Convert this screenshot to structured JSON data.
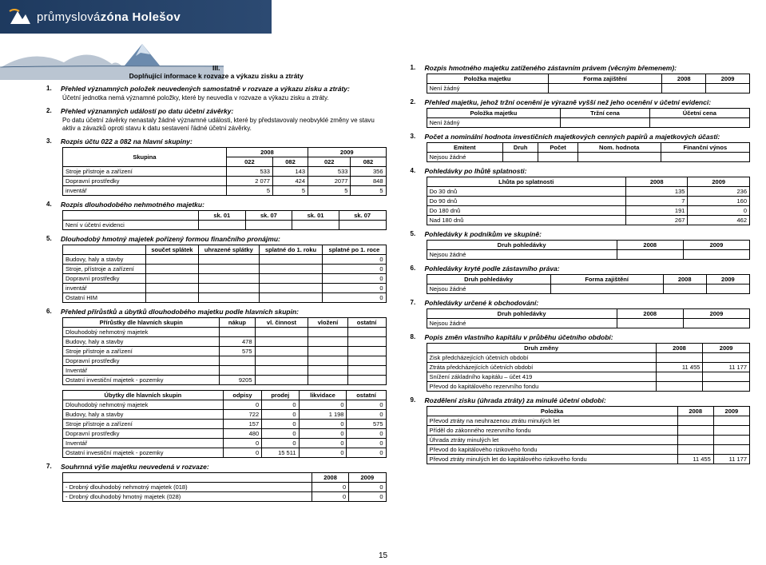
{
  "header": {
    "brand_prefix": "průmyslová ",
    "brand_bold": "zóna Holešov"
  },
  "page_number": "15",
  "left": {
    "main_title_roman": "III.",
    "main_title": "Doplňující informace k rozvaze a výkazu zisku a ztráty",
    "s1": {
      "num": "1.",
      "title": "Přehled významných položek neuvedených samostatně v rozvaze a výkazu zisku a ztráty:",
      "body": "Účetní jednotka nemá významné položky, které by neuvedla v rozvaze a výkazu zisku a ztráty."
    },
    "s2": {
      "num": "2.",
      "title": "Přehled významných událostí po datu účetní závěrky:",
      "body": "Po datu účetní závěrky nenastaly žádné významné události, které by představovaly neobvyklé změny ve stavu aktiv a závazků oproti stavu k datu sestavení řádné účetní závěrky."
    },
    "s3": {
      "num": "3.",
      "title": "Rozpis účtu 022 a 082 na hlavní skupiny:",
      "h": [
        "Skupina",
        "2008",
        "",
        "2009",
        ""
      ],
      "h2": [
        "",
        "022",
        "082",
        "022",
        "082"
      ],
      "rows": [
        [
          "Stroje přístroje a zařízení",
          "533",
          "143",
          "533",
          "356"
        ],
        [
          "Dopravní prostředky",
          "2 077",
          "424",
          "2077",
          "848"
        ],
        [
          "inventář",
          "5",
          "5",
          "5",
          "5"
        ]
      ]
    },
    "s4": {
      "num": "4.",
      "title": "Rozpis dlouhodobého nehmotného majetku:",
      "h": [
        "",
        "sk. 01",
        "sk. 07",
        "sk. 01",
        "sk. 07"
      ],
      "rows": [
        [
          "Není v účetní evidenci",
          "",
          "",
          "",
          ""
        ]
      ]
    },
    "s5": {
      "num": "5.",
      "title": "Dlouhodobý hmotný majetek pořízený formou finančního pronájmu:",
      "h": [
        "",
        "součet splátek",
        "uhrazené splátky",
        "splatné do 1. roku",
        "splatné po 1. roce"
      ],
      "rows": [
        [
          "Budovy, haly a stavby",
          "",
          "",
          "",
          "0"
        ],
        [
          "Stroje, přístroje a zařízení",
          "",
          "",
          "",
          "0"
        ],
        [
          "Dopravní prostředky",
          "",
          "",
          "",
          "0"
        ],
        [
          "inventář",
          "",
          "",
          "",
          "0"
        ],
        [
          "Ostatní HIM",
          "",
          "",
          "",
          "0"
        ]
      ]
    },
    "s6": {
      "num": "6.",
      "title": "Přehled přírůstků a úbytků dlouhodobého majetku podle hlavních skupin:",
      "ta": {
        "h": [
          "Přírůstky dle hlavních skupin",
          "nákup",
          "vl. činnost",
          "vložení",
          "ostatní"
        ],
        "rows": [
          [
            "Dlouhodobý nehmotný majetek",
            "",
            "",
            "",
            ""
          ],
          [
            "Budovy, haly a stavby",
            "478",
            "",
            "",
            ""
          ],
          [
            "Stroje přístroje a zařízení",
            "575",
            "",
            "",
            ""
          ],
          [
            "Dopravní prostředky",
            "",
            "",
            "",
            ""
          ],
          [
            "Inventář",
            "",
            "",
            "",
            ""
          ],
          [
            "Ostatní investiční majetek - pozemky",
            "9205",
            "",
            "",
            ""
          ]
        ]
      },
      "tb": {
        "h": [
          "Úbytky dle hlavních skupin",
          "odpisy",
          "prodej",
          "likvidace",
          "ostatní"
        ],
        "rows": [
          [
            "Dlouhodobý nehmotný majetek",
            "0",
            "0",
            "0",
            "0"
          ],
          [
            "Budovy, haly a stavby",
            "722",
            "0",
            "1 198",
            "0"
          ],
          [
            "Stroje přístroje a zařízení",
            "157",
            "0",
            "0",
            "575"
          ],
          [
            "Dopravní prostředky",
            "480",
            "0",
            "0",
            "0"
          ],
          [
            "Inventář",
            "0",
            "0",
            "0",
            "0"
          ],
          [
            "Ostatní investiční majetek - pozemky",
            "0",
            "15 511",
            "0",
            "0"
          ]
        ]
      }
    },
    "s7": {
      "num": "7.",
      "title": "Souhrnná výše majetku neuvedená v rozvaze:",
      "h": [
        "",
        "2008",
        "2009"
      ],
      "rows": [
        [
          "-  Drobný dlouhodobý nehmotný majetek (018)",
          "0",
          "0"
        ],
        [
          "-  Drobný dlouhodobý hmotný majetek (028)",
          "0",
          "0"
        ]
      ]
    }
  },
  "right": {
    "s1": {
      "num": "1.",
      "title": "Rozpis hmotného majetku zatíženého zástavním právem (věcným břemenem):",
      "h": [
        "Položka majetku",
        "Forma zajištění",
        "2008",
        "2009"
      ],
      "rows": [
        [
          "Není žádný",
          "",
          "",
          ""
        ]
      ]
    },
    "s2": {
      "num": "2.",
      "title": "Přehled majetku, jehož tržní ocenění je výrazně vyšší než jeho ocenění v účetní evidenci:",
      "h": [
        "Položka majetku",
        "Tržní cena",
        "Účetní cena"
      ],
      "rows": [
        [
          "Není žádný",
          "",
          ""
        ]
      ]
    },
    "s3": {
      "num": "3.",
      "title": "Počet a nominální hodnota investičních majetkových cenných papírů a majetkových účastí:",
      "h": [
        "Emitent",
        "Druh",
        "Počet",
        "Nom. hodnota",
        "Finanční výnos"
      ],
      "rows": [
        [
          "Nejsou žádné",
          "",
          "",
          "",
          ""
        ]
      ]
    },
    "s4": {
      "num": "4.",
      "title": "Pohledávky po lhůtě splatnosti:",
      "h": [
        "Lhůta po splatnosti",
        "2008",
        "2009"
      ],
      "rows": [
        [
          "Do 30 dnů",
          "135",
          "236"
        ],
        [
          "Do 90 dnů",
          "7",
          "160"
        ],
        [
          "Do 180 dnů",
          "191",
          "0"
        ],
        [
          "Nad 180 dnů",
          "267",
          "462"
        ]
      ]
    },
    "s5": {
      "num": "5.",
      "title": "Pohledávky k podnikům ve skupině:",
      "h": [
        "Druh pohledávky",
        "2008",
        "2009"
      ],
      "rows": [
        [
          "Nejsou žádné",
          "",
          ""
        ]
      ]
    },
    "s6": {
      "num": "6.",
      "title": "Pohledávky kryté podle zástavního práva:",
      "h": [
        "Druh pohledávky",
        "Forma zajištění",
        "2008",
        "2009"
      ],
      "rows": [
        [
          "Nejsou žádné",
          "",
          "",
          ""
        ]
      ]
    },
    "s7": {
      "num": "7.",
      "title": "Pohledávky určené k obchodování:",
      "h": [
        "Druh pohledávky",
        "2008",
        "2009"
      ],
      "rows": [
        [
          "Nejsou žádné",
          "",
          ""
        ]
      ]
    },
    "s8": {
      "num": "8.",
      "title": "Popis změn vlastního kapitálu v průběhu účetního období:",
      "h": [
        "Druh změny",
        "2008",
        "2009"
      ],
      "rows": [
        [
          "Zisk předcházejících účetních období",
          "",
          ""
        ],
        [
          "Ztráta předcházejících účetních období",
          "11 455",
          "11 177"
        ],
        [
          "Snížení základního kapitálu – účet 419",
          "",
          ""
        ],
        [
          "Převod do kapitálového rezervního fondu",
          "",
          ""
        ]
      ]
    },
    "s9": {
      "num": "9.",
      "title": "Rozdělení zisku (úhrada ztráty) za minulé účetní období:",
      "h": [
        "Položka",
        "2008",
        "2009"
      ],
      "rows": [
        [
          "Převod ztráty na neuhrazenou ztrátu minulých let",
          "",
          ""
        ],
        [
          "Příděl do zákonného rezervního fondu",
          "",
          ""
        ],
        [
          "Úhrada ztráty minulých let",
          "",
          ""
        ],
        [
          "Převod do kapitálového rizikového fondu",
          "",
          ""
        ],
        [
          "Převod ztráty minulých let do kapitálového rizikového fondu",
          "11 455",
          "11 177"
        ]
      ]
    }
  },
  "colors": {
    "header_bg_from": "#1e3a5f",
    "header_bg_to": "#2c4a72",
    "mountain": "#6b8aad",
    "mountain_snow": "#d5e1ee",
    "horizon": "#3a5a7d"
  }
}
